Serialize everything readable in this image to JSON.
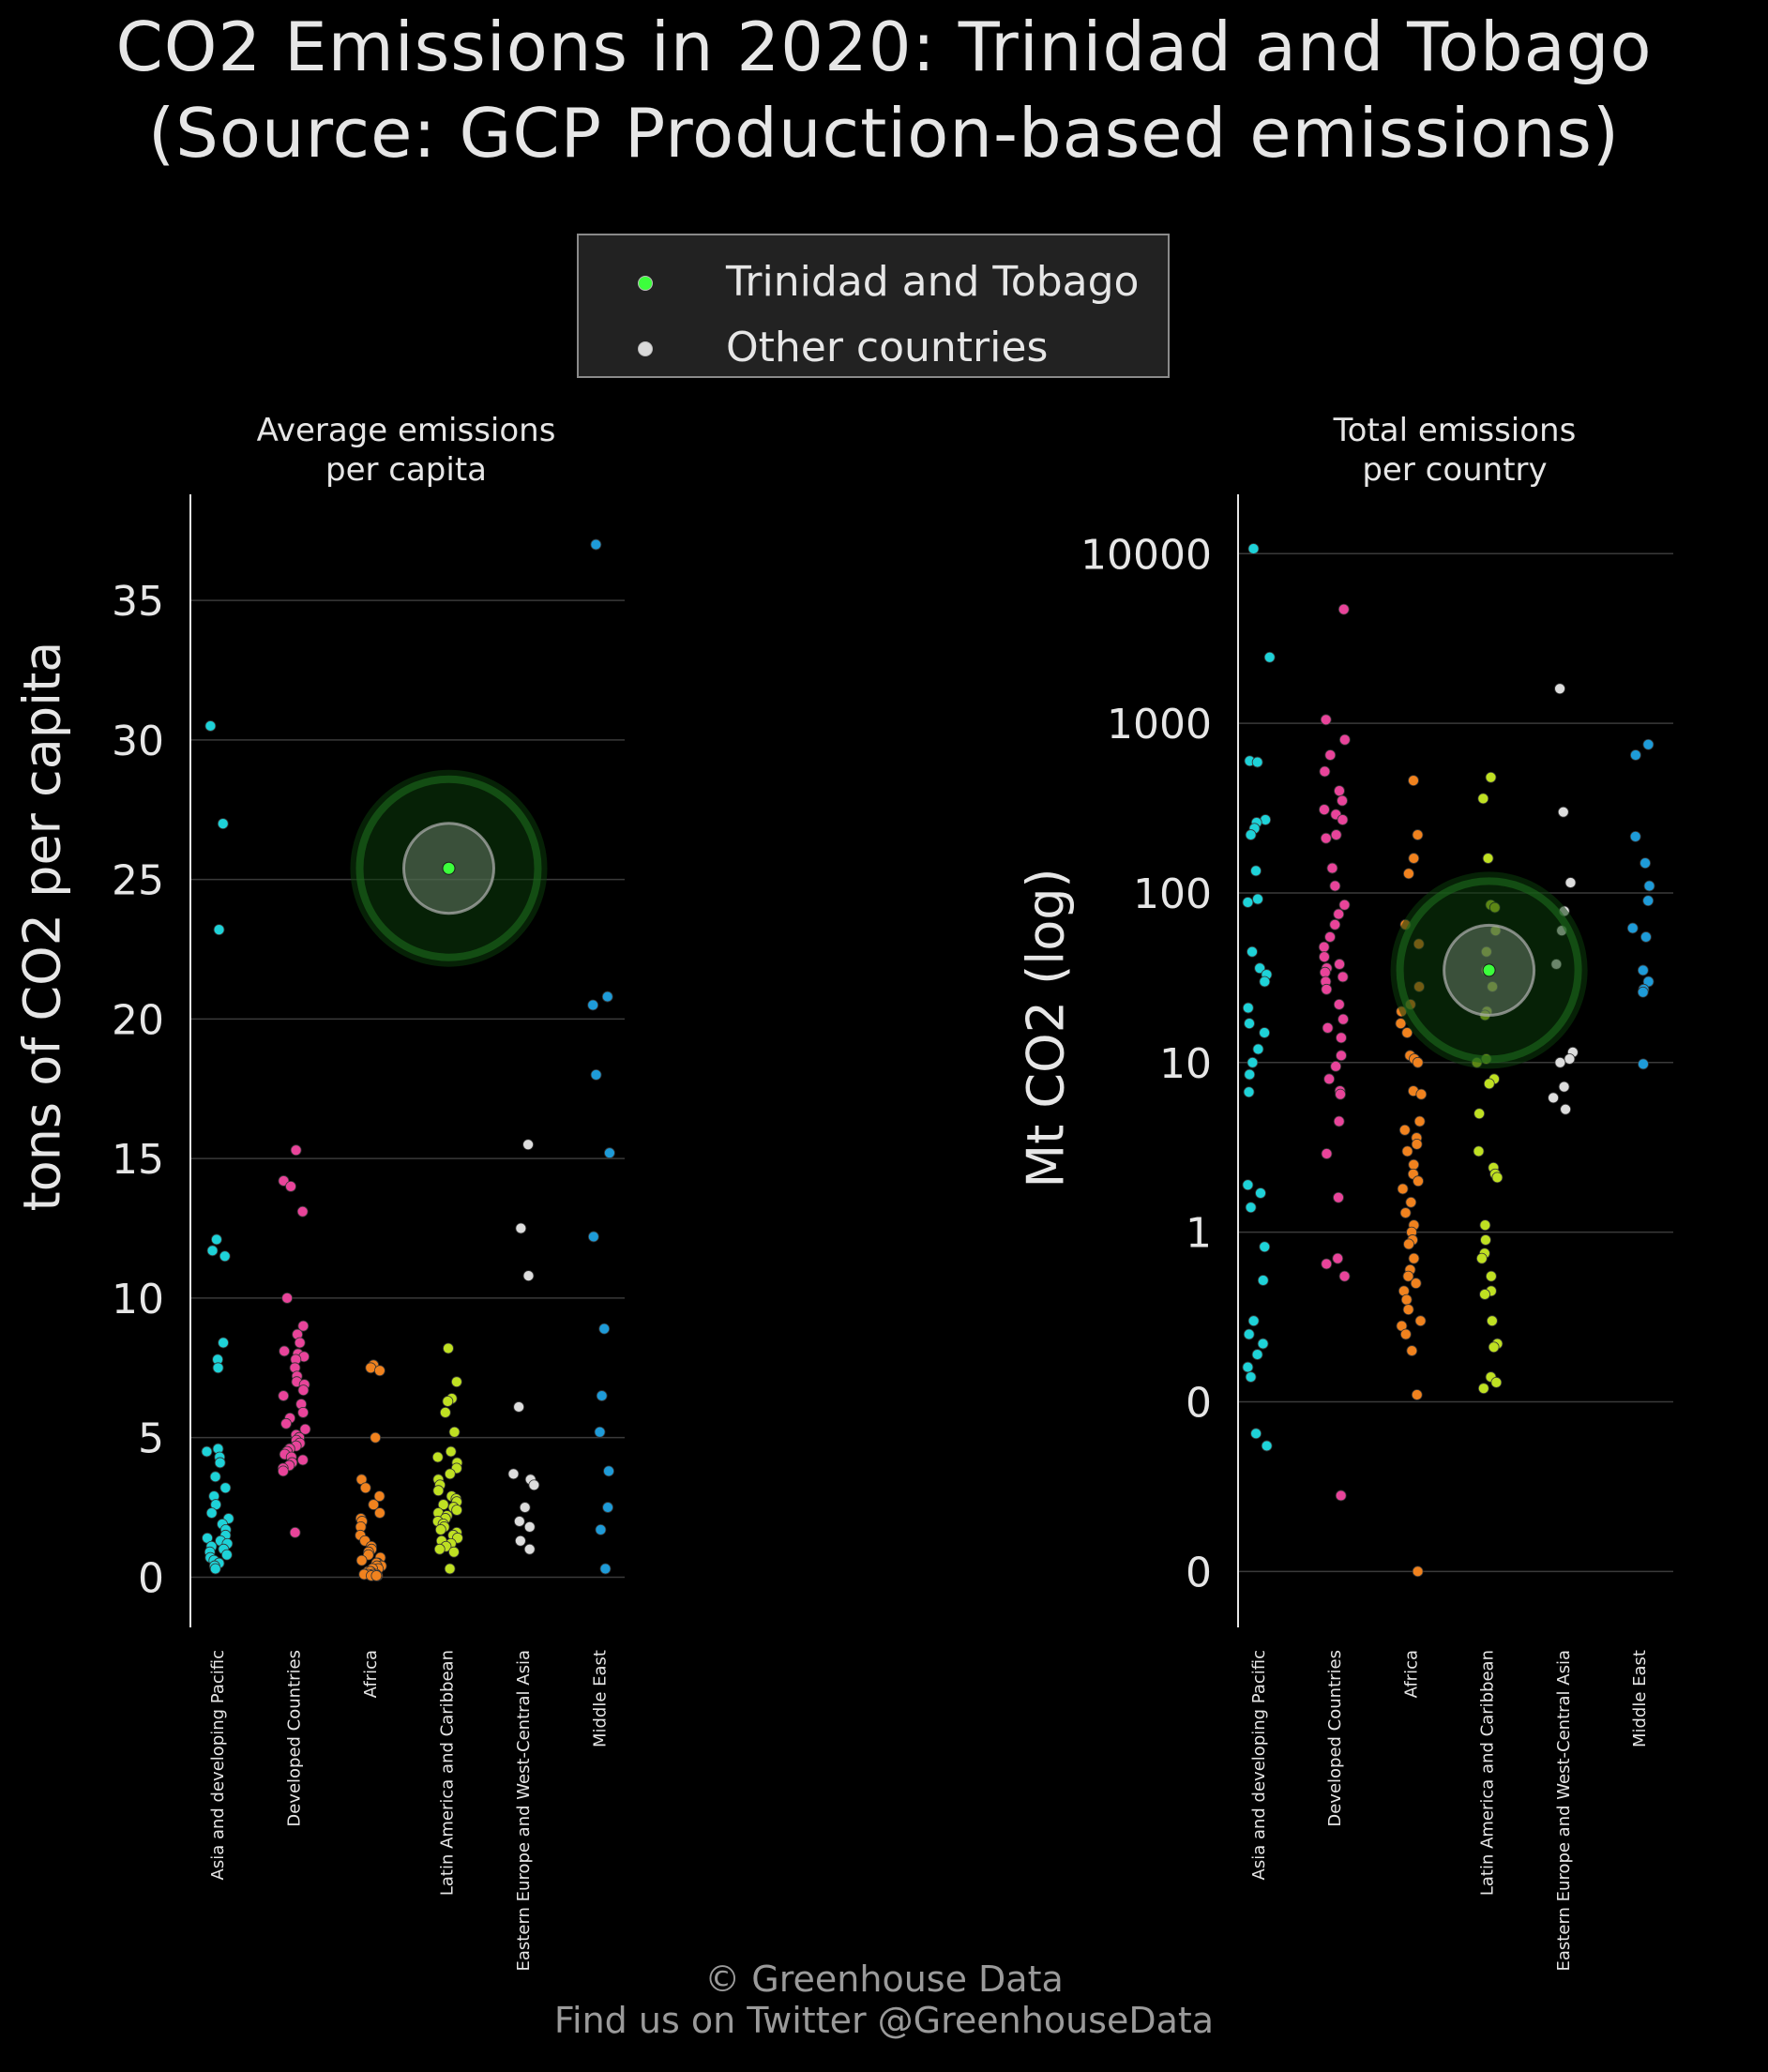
{
  "title_line1": "CO2 Emissions in 2020: Trinidad and Tobago",
  "title_line2": "(Source: GCP Production-based emissions)",
  "legend": {
    "highlight": {
      "label": "Trinidad and Tobago",
      "color": "#3cff3c"
    },
    "others": {
      "label": "Other countries",
      "color": "#d9d9d9"
    }
  },
  "footer": {
    "line1": "© Greenhouse Data",
    "line2": "Find us on Twitter @GreenhouseData"
  },
  "region_colors": {
    "Asia and developing Pacific": "#1ed2d8",
    "Developed Countries": "#e8449a",
    "Africa": "#f0821e",
    "Latin America and Caribbean": "#bfe022",
    "Eastern Europe and West-Central Asia": "#dddddd",
    "Middle East": "#1e9bd8"
  },
  "chart_data": [
    {
      "type": "scatter",
      "panel_title_line1": "Average emissions",
      "panel_title_line2": "per capita",
      "ylabel": "tons of CO2 per capita",
      "ylim": [
        -1.8,
        38.8
      ],
      "yticks": [
        0,
        5,
        10,
        15,
        20,
        25,
        30,
        35
      ],
      "ytick_labels": [
        "0",
        "5",
        "10",
        "15",
        "20",
        "25",
        "30",
        "35"
      ],
      "scale": "linear",
      "grid": true,
      "categories": [
        "Asia and developing Pacific",
        "Developed Countries",
        "Africa",
        "Latin America and Caribbean",
        "Eastern Europe and West-Central Asia",
        "Middle East"
      ],
      "highlight": {
        "name": "Trinidad and Tobago",
        "category": "Latin America and Caribbean",
        "value": 25.4
      },
      "series": [
        {
          "category": "Asia and developing Pacific",
          "values": [
            30.5,
            27.0,
            23.2,
            12.1,
            11.7,
            11.5,
            8.4,
            7.8,
            7.5,
            4.6,
            4.5,
            4.3,
            4.1,
            3.6,
            3.2,
            2.9,
            2.6,
            2.3,
            2.1,
            1.9,
            1.7,
            1.5,
            1.4,
            1.3,
            1.2,
            1.1,
            1.0,
            0.9,
            0.8,
            0.7,
            0.6,
            0.5,
            0.4,
            0.3
          ]
        },
        {
          "category": "Developed Countries",
          "values": [
            15.3,
            14.2,
            14.0,
            13.1,
            10.0,
            9.0,
            8.7,
            8.4,
            8.1,
            8.0,
            7.9,
            7.8,
            7.5,
            7.2,
            7.0,
            6.9,
            6.7,
            6.5,
            6.2,
            5.9,
            5.7,
            5.5,
            5.3,
            5.1,
            5.0,
            4.9,
            4.8,
            4.7,
            4.6,
            4.5,
            4.4,
            4.3,
            4.2,
            4.1,
            4.0,
            3.9,
            3.8,
            1.6
          ]
        },
        {
          "category": "Africa",
          "values": [
            7.6,
            7.5,
            7.4,
            5.0,
            3.5,
            3.2,
            2.9,
            2.6,
            2.3,
            2.1,
            2.0,
            1.8,
            1.5,
            1.3,
            1.1,
            1.0,
            0.9,
            0.8,
            0.7,
            0.6,
            0.5,
            0.5,
            0.4,
            0.4,
            0.3,
            0.3,
            0.2,
            0.2,
            0.2,
            0.1,
            0.1,
            0.1,
            0.1,
            0.1,
            0.05,
            0.05,
            0.05
          ]
        },
        {
          "category": "Latin America and Caribbean",
          "values": [
            8.2,
            7.0,
            6.4,
            6.3,
            5.9,
            5.2,
            4.5,
            4.3,
            4.1,
            3.9,
            3.7,
            3.5,
            3.3,
            3.1,
            2.9,
            2.8,
            2.7,
            2.6,
            2.5,
            2.4,
            2.3,
            2.2,
            2.1,
            2.0,
            1.9,
            1.8,
            1.7,
            1.6,
            1.5,
            1.4,
            1.3,
            1.2,
            1.1,
            1.0,
            0.9,
            0.3
          ]
        },
        {
          "category": "Eastern Europe and West-Central Asia",
          "values": [
            15.5,
            12.5,
            10.8,
            6.1,
            3.7,
            3.5,
            3.3,
            2.5,
            2.0,
            1.8,
            1.3,
            1.0
          ]
        },
        {
          "category": "Middle East",
          "values": [
            37.0,
            20.8,
            20.5,
            18.0,
            15.2,
            12.2,
            8.9,
            6.5,
            5.2,
            3.8,
            2.5,
            1.7,
            0.3
          ]
        }
      ]
    },
    {
      "type": "scatter",
      "panel_title_line1": "Total emissions",
      "panel_title_line2": "per country",
      "ylabel": "Mt CO2 (log)",
      "ylim_log10": [
        -2.33,
        4.35
      ],
      "yticks_log10": [
        -2,
        -1,
        0,
        1,
        2,
        3,
        4
      ],
      "ytick_labels": [
        "0",
        "0",
        "1",
        "10",
        "100",
        "1000",
        "10000"
      ],
      "scale": "log",
      "grid": true,
      "categories": [
        "Asia and developing Pacific",
        "Developed Countries",
        "Africa",
        "Latin America and Caribbean",
        "Eastern Europe and West-Central Asia",
        "Middle East"
      ],
      "highlight": {
        "name": "Trinidad and Tobago",
        "category": "Latin America and Caribbean",
        "value": 35
      },
      "series": [
        {
          "category": "Asia and developing Pacific",
          "values": [
            10700,
            2450,
            600,
            590,
            270,
            260,
            240,
            220,
            135,
            92,
            88,
            45,
            36,
            33,
            30,
            21,
            17,
            15,
            12,
            10,
            8.5,
            6.7,
            1.9,
            1.7,
            1.4,
            0.82,
            0.52,
            0.3,
            0.25,
            0.22,
            0.19,
            0.16,
            0.14,
            0.065,
            0.055
          ]
        },
        {
          "category": "Developed Countries",
          "values": [
            4700,
            1050,
            800,
            650,
            520,
            400,
            350,
            310,
            290,
            270,
            220,
            210,
            140,
            110,
            85,
            75,
            65,
            55,
            48,
            42,
            38,
            36,
            34,
            32,
            30,
            27,
            22,
            18,
            16,
            14,
            11,
            9.5,
            8,
            6.8,
            6.5,
            4.5,
            2.9,
            1.6,
            0.7,
            0.65,
            0.55,
            0.028
          ]
        },
        {
          "category": "Africa",
          "values": [
            460,
            220,
            160,
            130,
            65,
            50,
            28,
            22,
            20,
            17,
            15,
            11,
            10.5,
            10,
            6.8,
            6.5,
            4.5,
            4.0,
            3.6,
            3.3,
            3.0,
            2.5,
            2.2,
            2.0,
            1.8,
            1.5,
            1.3,
            1.1,
            1.0,
            0.9,
            0.85,
            0.7,
            0.6,
            0.55,
            0.5,
            0.45,
            0.4,
            0.35,
            0.3,
            0.28,
            0.25,
            0.2,
            0.11,
            0.01
          ]
        },
        {
          "category": "Latin America and Caribbean",
          "values": [
            480,
            360,
            160,
            85,
            82,
            60,
            45,
            35,
            28,
            20,
            19,
            10.5,
            10,
            8,
            7.5,
            5,
            3,
            2.4,
            2.2,
            2.1,
            1.1,
            0.9,
            0.75,
            0.7,
            0.55,
            0.45,
            0.43,
            0.3,
            0.22,
            0.21,
            0.14,
            0.13,
            0.12
          ]
        },
        {
          "category": "Eastern Europe and West-Central Asia",
          "values": [
            1600,
            300,
            115,
            78,
            60,
            38,
            11.5,
            10.5,
            10,
            7.2,
            6.2,
            5.3
          ]
        },
        {
          "category": "Middle East",
          "values": [
            750,
            650,
            215,
            150,
            110,
            90,
            62,
            55,
            35,
            30,
            27,
            26,
            9.8
          ]
        }
      ]
    }
  ]
}
